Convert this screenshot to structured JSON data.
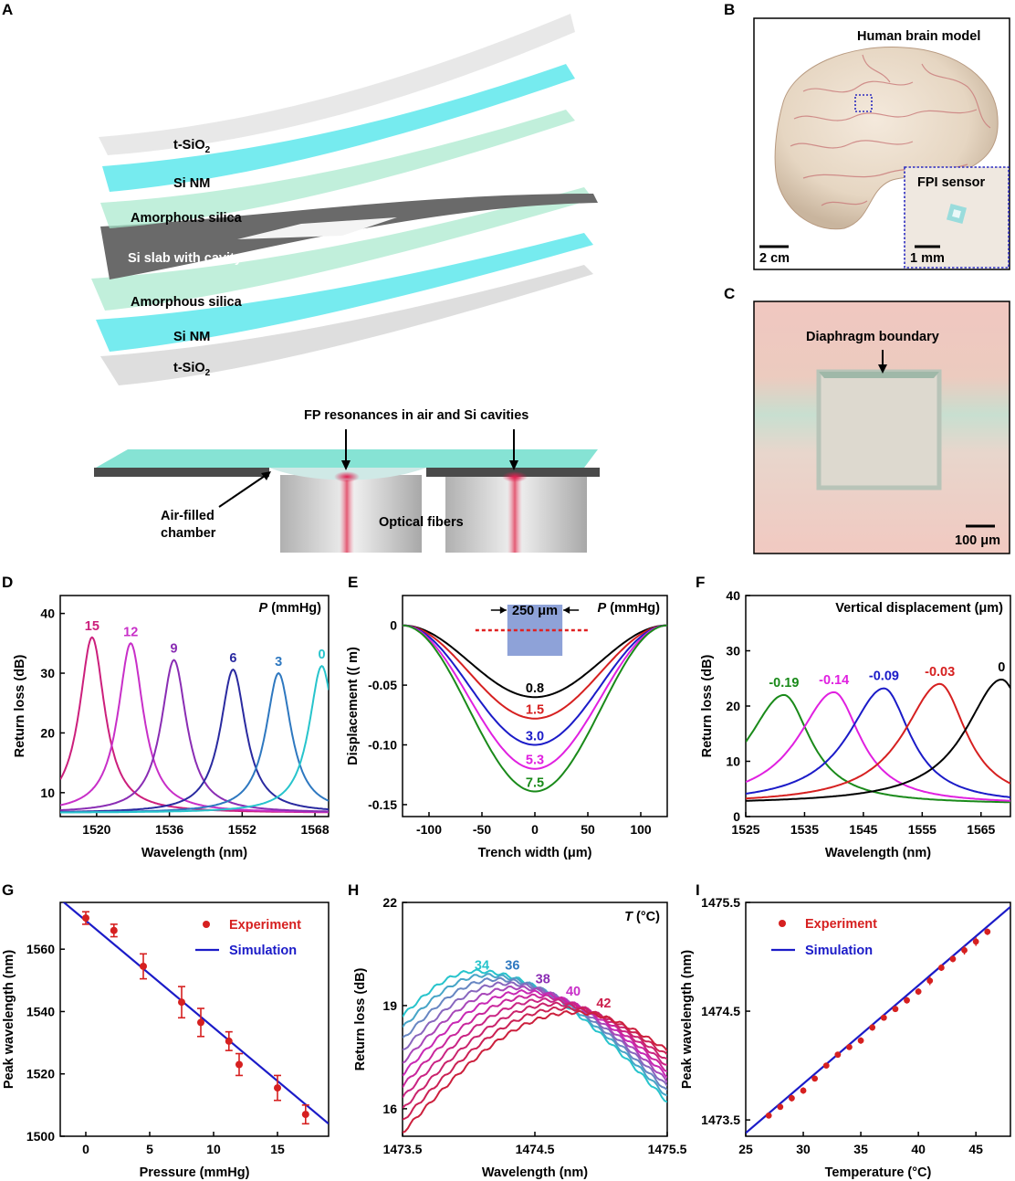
{
  "panelLetters": [
    "A",
    "B",
    "C",
    "D",
    "E",
    "F",
    "G",
    "H",
    "I"
  ],
  "panelA": {
    "layers": {
      "tsio2": "t-SiO",
      "tsio2_sub": "2",
      "sinm": "Si NM",
      "amorph": "Amorphous silica",
      "slab": "Si slab with cavity"
    },
    "callout_fp": "FP resonances in air and Si cavities",
    "chamber_line1": "Air-filled",
    "chamber_line2": "chamber",
    "fibers": "Optical fibers"
  },
  "panelB": {
    "title": "Human brain model",
    "inset": "FPI sensor",
    "scale_main": "2 cm",
    "scale_inset": "1 mm",
    "colors": {
      "inset_border": "#2b2bbf"
    }
  },
  "panelC": {
    "label": "Diaphragm boundary",
    "scale": "100 μm"
  },
  "chart_data": [
    {
      "id": "D",
      "type": "line",
      "xlabel": "Wavelength (nm)",
      "ylabel": "Return loss (dB)",
      "legend_title": "P",
      "legend_unit": " (mmHg)",
      "xlim": [
        1512,
        1571
      ],
      "ylim": [
        6,
        43
      ],
      "xticks": [
        1520,
        1536,
        1552,
        1568
      ],
      "yticks": [
        10,
        20,
        30,
        40
      ],
      "series": [
        {
          "name": "15",
          "peak": 1519.0,
          "height": 36.0,
          "color": "#cc1f7c"
        },
        {
          "name": "12",
          "peak": 1527.5,
          "height": 35.0,
          "color": "#c82fc8"
        },
        {
          "name": "9",
          "peak": 1537.0,
          "height": 32.2,
          "color": "#8a2db4"
        },
        {
          "name": "6",
          "peak": 1550.0,
          "height": 30.6,
          "color": "#2a2aa0"
        },
        {
          "name": "3",
          "peak": 1560.0,
          "height": 30.0,
          "color": "#2e78c0"
        },
        {
          "name": "0",
          "peak": 1569.5,
          "height": 31.2,
          "color": "#27c4cc"
        }
      ]
    },
    {
      "id": "E",
      "type": "line",
      "xlabel": "Trench width (μm)",
      "ylabel": "Displacement (( m)",
      "legend_title": "P",
      "legend_unit": " (mmHg)",
      "inset_label": "250 μm",
      "xlim": [
        -125,
        125
      ],
      "ylim": [
        -0.16,
        0.025
      ],
      "xticks": [
        -100,
        -50,
        0,
        50,
        100
      ],
      "yticks": [
        0,
        -0.05,
        -0.1,
        -0.15
      ],
      "ytick_labels": [
        "0",
        "-0.05",
        "-0.10",
        "-0.15"
      ],
      "series": [
        {
          "name": "0.8",
          "depth": -0.06,
          "color": "#000000"
        },
        {
          "name": "1.5",
          "depth": -0.078,
          "color": "#d62020"
        },
        {
          "name": "3.0",
          "depth": -0.1,
          "color": "#1b1bc8"
        },
        {
          "name": "5.3",
          "depth": -0.12,
          "color": "#e020e0"
        },
        {
          "name": "7.5",
          "depth": -0.139,
          "color": "#1a8a1a"
        }
      ]
    },
    {
      "id": "F",
      "type": "line",
      "xlabel": "Wavelength (nm)",
      "ylabel": "Return loss (dB)",
      "legend_title": "Vertical displacement (μm)",
      "xlim": [
        1525,
        1570
      ],
      "ylim": [
        0,
        40
      ],
      "xticks": [
        1525,
        1535,
        1545,
        1555,
        1565
      ],
      "yticks": [
        0,
        10,
        20,
        30,
        40
      ],
      "series": [
        {
          "name": "-0.19",
          "peak": 1531.5,
          "height": 22.0,
          "color": "#1a8a1a"
        },
        {
          "name": "-0.14",
          "peak": 1540.0,
          "height": 22.5,
          "color": "#e020e0"
        },
        {
          "name": "-0.09",
          "peak": 1548.5,
          "height": 23.2,
          "color": "#1b1bc8"
        },
        {
          "name": "-0.03",
          "peak": 1558.0,
          "height": 24.0,
          "color": "#d62020"
        },
        {
          "name": "0",
          "peak": 1568.5,
          "height": 24.8,
          "color": "#000000"
        }
      ]
    },
    {
      "id": "G",
      "type": "scatter",
      "xlabel": "Pressure (mmHg)",
      "ylabel": "Peak wavelength (nm)",
      "xlim": [
        -2,
        19
      ],
      "ylim": [
        1500,
        1575
      ],
      "xticks": [
        0,
        5,
        10,
        15
      ],
      "yticks": [
        1500,
        1520,
        1540,
        1560
      ],
      "experiment": {
        "x": [
          0,
          2.2,
          4.5,
          7.5,
          9,
          11.2,
          12,
          15,
          17.2
        ],
        "y": [
          1570,
          1566,
          1554.5,
          1543,
          1536.5,
          1530.5,
          1523,
          1515.5,
          1507
        ],
        "err": [
          2,
          2,
          4,
          5,
          4.5,
          3,
          3.5,
          4,
          3
        ]
      },
      "simulation": {
        "x": [
          -2,
          19
        ],
        "y": [
          1576,
          1504
        ]
      },
      "legend": [
        "Experiment",
        "Simulation"
      ],
      "colors": {
        "experiment": "#d62020",
        "simulation": "#1b1bc8"
      }
    },
    {
      "id": "H",
      "type": "line",
      "xlabel": "Wavelength (nm)",
      "ylabel": "Return loss (dB)",
      "legend_title": "T",
      "legend_unit": " (°C)",
      "xlim": [
        1473.5,
        1475.5
      ],
      "ylim": [
        15.2,
        22
      ],
      "xticks": [
        1473.5,
        1474.5,
        1475.5
      ],
      "yticks": [
        16,
        19,
        22
      ],
      "labels": [
        "34",
        "36",
        "38",
        "40",
        "42"
      ],
      "label_colors": [
        "#27c4cc",
        "#2e78c0",
        "#8a2db4",
        "#c82fc8",
        "#cc1f4c"
      ]
    },
    {
      "id": "I",
      "type": "scatter",
      "xlabel": "Temperature (°C)",
      "ylabel": "Peak wavelength (nm)",
      "xlim": [
        25,
        48
      ],
      "ylim": [
        1473.35,
        1475.5
      ],
      "xticks": [
        25,
        30,
        35,
        40,
        45
      ],
      "yticks": [
        1473.5,
        1474.5,
        1475.5
      ],
      "experiment": {
        "x": [
          27,
          28,
          29,
          30,
          31,
          32,
          33,
          34,
          35,
          36,
          37,
          38,
          39,
          40,
          41,
          42,
          43,
          44,
          45,
          46
        ],
        "y": [
          1473.54,
          1473.62,
          1473.7,
          1473.77,
          1473.88,
          1474.0,
          1474.1,
          1474.17,
          1474.23,
          1474.35,
          1474.44,
          1474.52,
          1474.6,
          1474.68,
          1474.78,
          1474.9,
          1474.98,
          1475.06,
          1475.14,
          1475.23
        ],
        "err": [
          0.02,
          0.02,
          0.03,
          0.03,
          0.02,
          0.02,
          0.02,
          0.02,
          0.03,
          0.03,
          0.02,
          0.02,
          0.03,
          0.03,
          0.04,
          0.03,
          0.03,
          0.04,
          0.04,
          0.03
        ]
      },
      "simulation": {
        "x": [
          25,
          48
        ],
        "y": [
          1473.38,
          1475.46
        ]
      },
      "legend": [
        "Experiment",
        "Simulation"
      ],
      "colors": {
        "experiment": "#d62020",
        "simulation": "#1b1bc8"
      }
    }
  ]
}
